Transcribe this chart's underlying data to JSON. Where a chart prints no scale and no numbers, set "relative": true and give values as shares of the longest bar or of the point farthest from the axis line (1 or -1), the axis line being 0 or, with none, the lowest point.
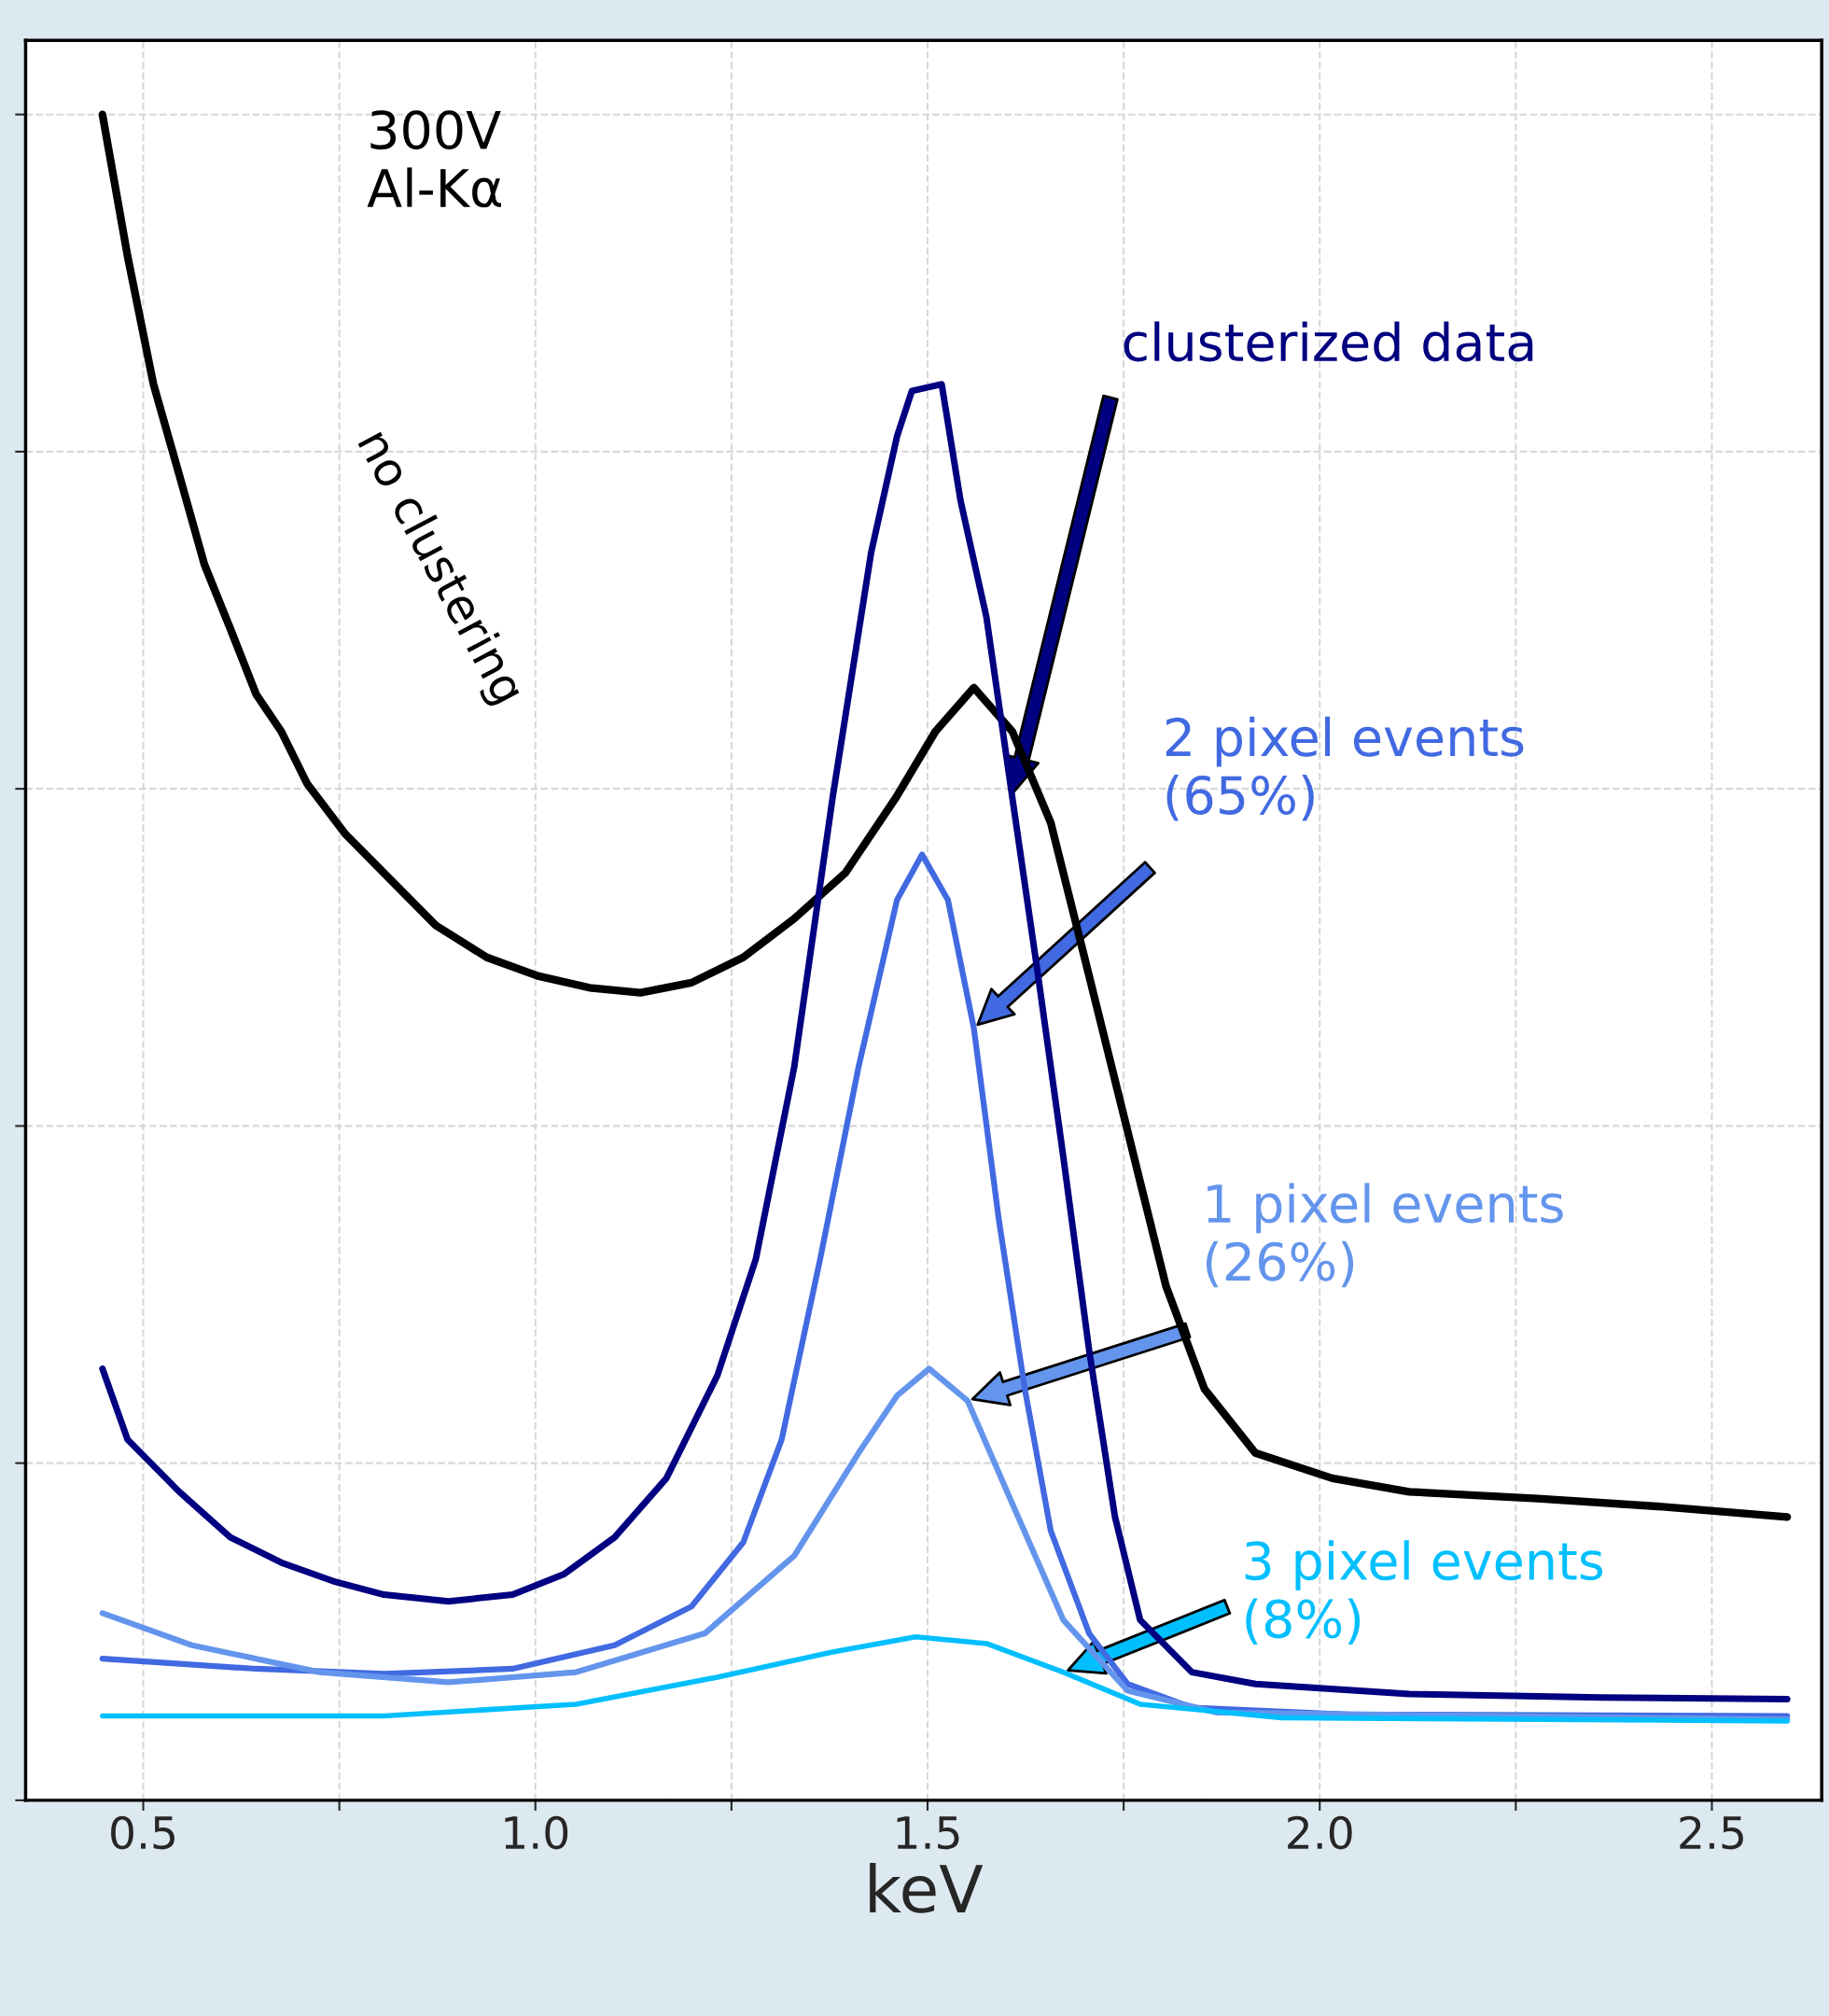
{
  "chart_data": {
    "type": "line",
    "relative": true,
    "xlabel": "keV",
    "annotations": [
      "300V\nAl-Kα"
    ],
    "xlim": [
      0.35,
      2.64
    ],
    "xticks": [
      0.5,
      {
        "value": 0.75,
        "label": null
      },
      {
        "value": 1.0,
        "label": "1.0"
      },
      {
        "value": 1.25,
        "label": null
      },
      1.5,
      {
        "value": 1.75,
        "label": null
      },
      {
        "value": 2.0,
        "label": "2.0"
      },
      {
        "value": 2.25,
        "label": null
      },
      2.5
    ],
    "tick_labels": "x",
    "grid": true,
    "line_style": "solid",
    "marker": "none",
    "series": [
      {
        "name": "no clustering",
        "color": "#000000",
        "x": [
          0.448,
          0.48,
          0.513,
          0.546,
          0.578,
          0.611,
          0.644,
          0.676,
          0.709,
          0.758,
          0.807,
          0.873,
          0.938,
          1.003,
          1.069,
          1.134,
          1.199,
          1.265,
          1.33,
          1.395,
          1.46,
          1.51,
          1.559,
          1.608,
          1.657,
          1.706,
          1.755,
          1.804,
          1.853,
          1.918,
          2.016,
          2.114,
          2.278,
          2.441,
          2.596
        ],
        "values": [
          1.0,
          0.916,
          0.84,
          0.786,
          0.733,
          0.695,
          0.656,
          0.634,
          0.603,
          0.573,
          0.55,
          0.519,
          0.5,
          0.489,
          0.482,
          0.479,
          0.485,
          0.5,
          0.523,
          0.55,
          0.595,
          0.634,
          0.66,
          0.634,
          0.58,
          0.489,
          0.397,
          0.305,
          0.244,
          0.206,
          0.191,
          0.183,
          0.179,
          0.174,
          0.168
        ]
      },
      {
        "name": "clusterized data",
        "color": "#000080",
        "x": [
          0.448,
          0.48,
          0.546,
          0.611,
          0.676,
          0.742,
          0.807,
          0.889,
          0.971,
          1.036,
          1.101,
          1.167,
          1.232,
          1.281,
          1.33,
          1.379,
          1.428,
          1.461,
          1.48,
          1.518,
          1.542,
          1.575,
          1.608,
          1.641,
          1.673,
          1.706,
          1.739,
          1.771,
          1.837,
          1.918,
          2.114,
          2.36,
          2.596
        ],
        "values": [
          0.256,
          0.214,
          0.183,
          0.156,
          0.141,
          0.13,
          0.122,
          0.118,
          0.122,
          0.134,
          0.156,
          0.191,
          0.252,
          0.321,
          0.435,
          0.595,
          0.74,
          0.809,
          0.836,
          0.84,
          0.771,
          0.702,
          0.595,
          0.489,
          0.382,
          0.267,
          0.168,
          0.107,
          0.076,
          0.069,
          0.063,
          0.061,
          0.06
        ]
      },
      {
        "name": "2 pixel events\n(65%)",
        "color": "#4169e1",
        "x": [
          0.448,
          0.644,
          0.807,
          0.971,
          1.101,
          1.199,
          1.265,
          1.314,
          1.363,
          1.412,
          1.461,
          1.493,
          1.526,
          1.559,
          1.591,
          1.624,
          1.657,
          1.706,
          1.755,
          1.837,
          2.033,
          2.596
        ],
        "values": [
          0.084,
          0.078,
          0.075,
          0.078,
          0.092,
          0.115,
          0.153,
          0.214,
          0.321,
          0.435,
          0.534,
          0.561,
          0.534,
          0.458,
          0.344,
          0.244,
          0.16,
          0.099,
          0.069,
          0.055,
          0.051,
          0.05
        ]
      },
      {
        "name": "1 pixel events\n(26%)",
        "color": "#6495ed",
        "x": [
          0.448,
          0.562,
          0.725,
          0.889,
          1.052,
          1.216,
          1.33,
          1.412,
          1.461,
          1.502,
          1.551,
          1.608,
          1.673,
          1.755,
          1.869,
          2.596
        ],
        "values": [
          0.111,
          0.092,
          0.076,
          0.07,
          0.076,
          0.099,
          0.145,
          0.206,
          0.24,
          0.256,
          0.237,
          0.176,
          0.107,
          0.065,
          0.052,
          0.048
        ]
      },
      {
        "name": "3 pixel events\n(8%)",
        "color": "#00bfff",
        "x": [
          0.448,
          0.807,
          1.052,
          1.232,
          1.379,
          1.485,
          1.575,
          1.673,
          1.771,
          1.951,
          2.596
        ],
        "values": [
          0.05,
          0.05,
          0.057,
          0.073,
          0.088,
          0.097,
          0.093,
          0.076,
          0.057,
          0.049,
          0.047
        ]
      }
    ]
  }
}
